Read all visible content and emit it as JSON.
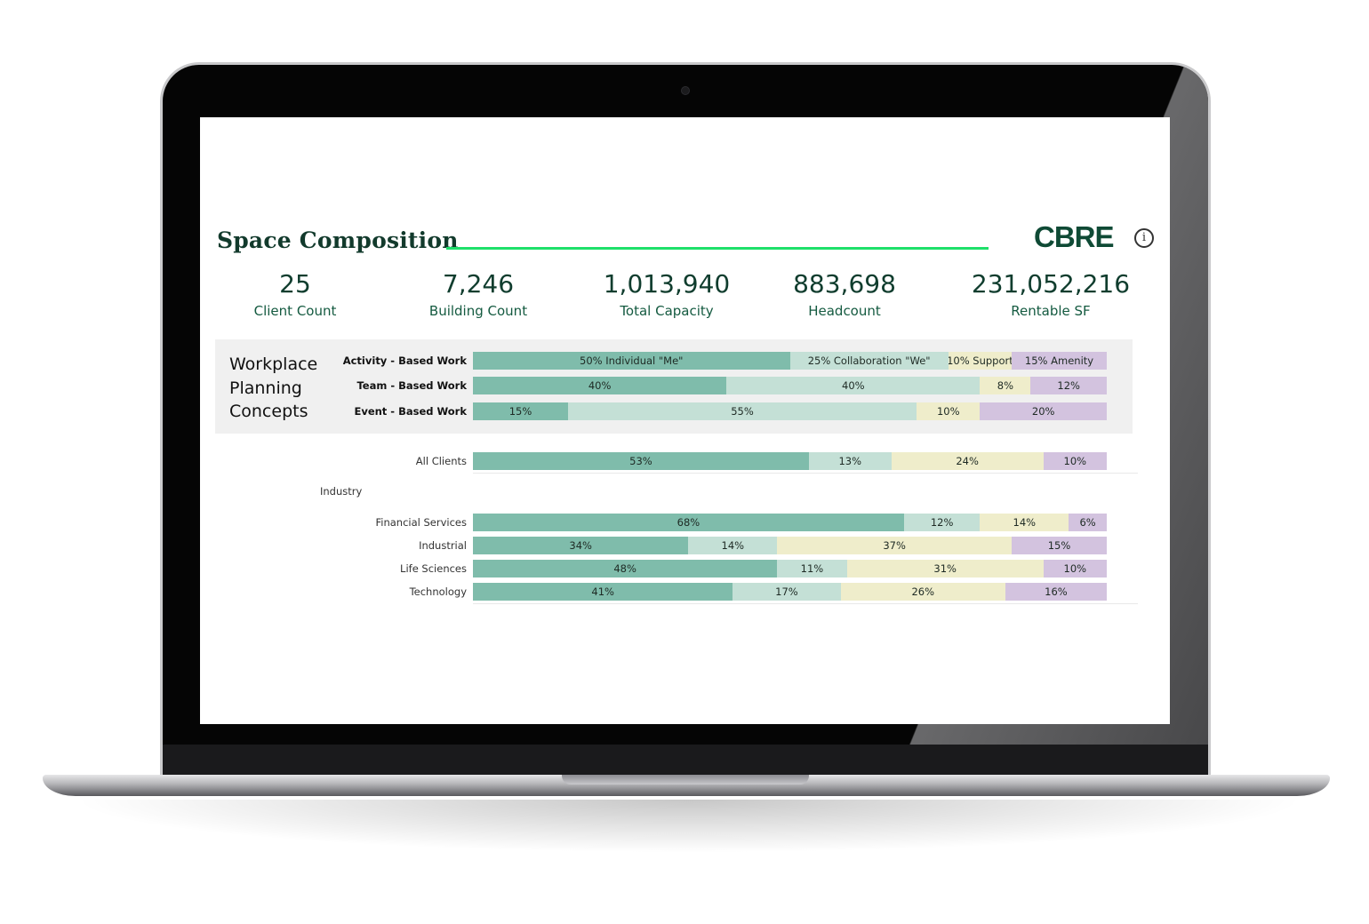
{
  "dashboard": {
    "title": "Space Composition",
    "logo": "CBRE",
    "info_icon": "info-icon",
    "kpis": [
      {
        "value": "25",
        "label": "Client Count"
      },
      {
        "value": "7,246",
        "label": "Building Count"
      },
      {
        "value": "1,013,940",
        "label": "Total Capacity"
      },
      {
        "value": "883,698",
        "label": "Headcount"
      },
      {
        "value": "231,052,216",
        "label": "Rentable SF"
      }
    ],
    "workplace": {
      "title_lines": [
        "Workplace",
        "Planning",
        "Concepts"
      ],
      "rows": [
        {
          "label": "Activity - Based Work",
          "segments": [
            {
              "text": "50%  Individual \"Me\"",
              "value": 50
            },
            {
              "text": "25% Collaboration \"We\"",
              "value": 25
            },
            {
              "text": "10% Support",
              "value": 10
            },
            {
              "text": "15% Amenity",
              "value": 15
            }
          ]
        },
        {
          "label": "Team - Based Work",
          "segments": [
            {
              "text": "40%",
              "value": 40
            },
            {
              "text": "40%",
              "value": 40
            },
            {
              "text": "8%",
              "value": 8
            },
            {
              "text": "12%",
              "value": 12
            }
          ]
        },
        {
          "label": "Event - Based Work",
          "segments": [
            {
              "text": "15%",
              "value": 15
            },
            {
              "text": "55%",
              "value": 55
            },
            {
              "text": "10%",
              "value": 10
            },
            {
              "text": "20%",
              "value": 20
            }
          ]
        }
      ]
    },
    "all_clients": {
      "label": "All Clients",
      "segments": [
        {
          "text": "53%",
          "value": 53
        },
        {
          "text": "13%",
          "value": 13
        },
        {
          "text": "24%",
          "value": 24
        },
        {
          "text": "10%",
          "value": 10
        }
      ]
    },
    "industry_header": "Industry",
    "industries": [
      {
        "label": "Financial Services",
        "segments": [
          {
            "text": "68%",
            "value": 68
          },
          {
            "text": "12%",
            "value": 12
          },
          {
            "text": "14%",
            "value": 14
          },
          {
            "text": "6%",
            "value": 6
          }
        ]
      },
      {
        "label": "Industrial",
        "segments": [
          {
            "text": "34%",
            "value": 34
          },
          {
            "text": "14%",
            "value": 14
          },
          {
            "text": "37%",
            "value": 37
          },
          {
            "text": "15%",
            "value": 15
          }
        ]
      },
      {
        "label": "Life Sciences",
        "segments": [
          {
            "text": "48%",
            "value": 48
          },
          {
            "text": "11%",
            "value": 11
          },
          {
            "text": "31%",
            "value": 31
          },
          {
            "text": "10%",
            "value": 10
          }
        ]
      },
      {
        "label": "Technology",
        "segments": [
          {
            "text": "41%",
            "value": 41
          },
          {
            "text": "17%",
            "value": 17
          },
          {
            "text": "26%",
            "value": 26
          },
          {
            "text": "16%",
            "value": 16
          }
        ]
      }
    ],
    "segment_colors": [
      "#7fbcab",
      "#c4e0d6",
      "#efedcb",
      "#d3c3df"
    ]
  }
}
